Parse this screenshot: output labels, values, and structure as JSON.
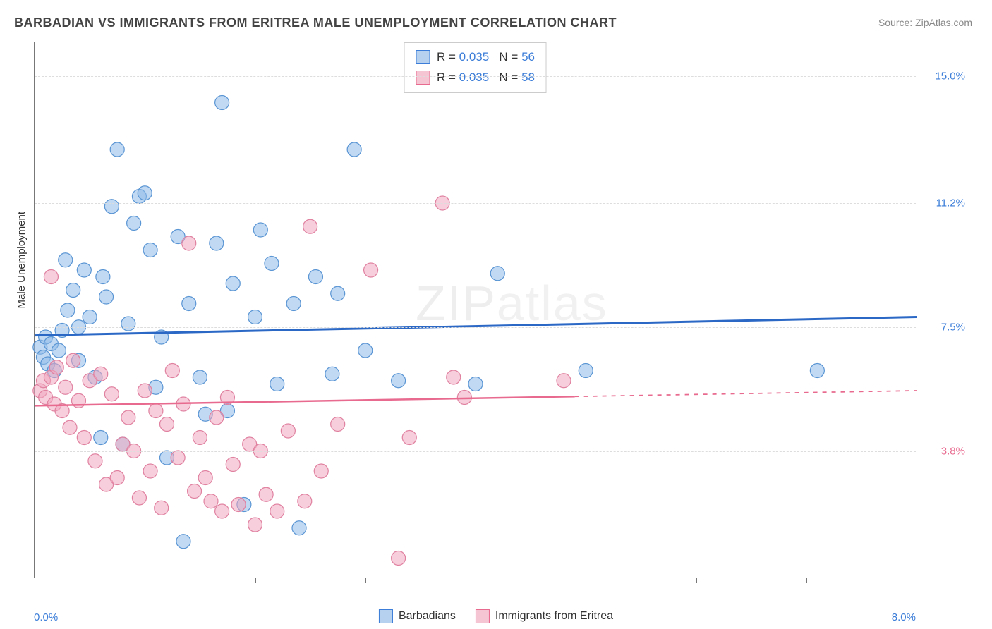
{
  "title": "BARBADIAN VS IMMIGRANTS FROM ERITREA MALE UNEMPLOYMENT CORRELATION CHART",
  "source": "Source: ZipAtlas.com",
  "watermark": {
    "bold": "ZIP",
    "thin": "atlas"
  },
  "chart": {
    "type": "scatter",
    "y_axis_label": "Male Unemployment",
    "background_color": "#ffffff",
    "grid_color": "#dddddd",
    "axis_color": "#777777",
    "x_domain": [
      0,
      8
    ],
    "y_domain": [
      0,
      16
    ],
    "x_ticks": [
      0,
      1,
      2,
      3,
      4,
      5,
      6,
      7,
      8
    ],
    "y_gridlines": [
      {
        "y": 3.8,
        "label": "3.8%",
        "color": "#e86a8f"
      },
      {
        "y": 7.5,
        "label": "7.5%",
        "color": "#3b7dd8"
      },
      {
        "y": 11.2,
        "label": "11.2%",
        "color": "#3b7dd8"
      },
      {
        "y": 15.0,
        "label": "15.0%",
        "color": "#3b7dd8"
      }
    ],
    "x_left_label": {
      "text": "0.0%",
      "color": "#3b7dd8"
    },
    "x_right_label": {
      "text": "8.0%",
      "color": "#3b7dd8"
    },
    "stat_legend": [
      {
        "swatch_fill": "#b6d1ef",
        "swatch_border": "#3b7dd8",
        "r_label": "R =",
        "r": "0.035",
        "n_label": "N =",
        "n": "56"
      },
      {
        "swatch_fill": "#f6c5d3",
        "swatch_border": "#e86a8f",
        "r_label": "R =",
        "r": "0.035",
        "n_label": "N =",
        "n": "58"
      }
    ],
    "bottom_legend": [
      {
        "swatch_fill": "#b6d1ef",
        "swatch_border": "#3b7dd8",
        "label": "Barbadians"
      },
      {
        "swatch_fill": "#f6c5d3",
        "swatch_border": "#e86a8f",
        "label": "Immigrants from Eritrea"
      }
    ],
    "series": [
      {
        "name": "Barbadians",
        "marker_fill": "rgba(142,186,232,0.55)",
        "marker_stroke": "#5a95d4",
        "marker_radius": 10,
        "trend_color": "#2b68c6",
        "trend_width": 3,
        "trend": {
          "x1": 0,
          "y1": 7.25,
          "x2": 8,
          "y2": 7.8,
          "solid_until_x": 8
        },
        "points": [
          [
            0.05,
            6.9
          ],
          [
            0.08,
            6.6
          ],
          [
            0.1,
            7.2
          ],
          [
            0.12,
            6.4
          ],
          [
            0.15,
            7.0
          ],
          [
            0.18,
            6.2
          ],
          [
            0.22,
            6.8
          ],
          [
            0.25,
            7.4
          ],
          [
            0.3,
            8.0
          ],
          [
            0.35,
            8.6
          ],
          [
            0.4,
            7.5
          ],
          [
            0.45,
            9.2
          ],
          [
            0.5,
            7.8
          ],
          [
            0.55,
            6.0
          ],
          [
            0.6,
            4.2
          ],
          [
            0.65,
            8.4
          ],
          [
            0.7,
            11.1
          ],
          [
            0.75,
            12.8
          ],
          [
            0.8,
            4.0
          ],
          [
            0.85,
            7.6
          ],
          [
            0.9,
            10.6
          ],
          [
            0.95,
            11.4
          ],
          [
            1.0,
            11.5
          ],
          [
            1.05,
            9.8
          ],
          [
            1.1,
            5.7
          ],
          [
            1.15,
            7.2
          ],
          [
            1.2,
            3.6
          ],
          [
            1.3,
            10.2
          ],
          [
            1.35,
            1.1
          ],
          [
            1.4,
            8.2
          ],
          [
            1.5,
            6.0
          ],
          [
            1.55,
            4.9
          ],
          [
            1.65,
            10.0
          ],
          [
            1.7,
            14.2
          ],
          [
            1.75,
            5.0
          ],
          [
            1.8,
            8.8
          ],
          [
            1.9,
            2.2
          ],
          [
            2.0,
            7.8
          ],
          [
            2.05,
            10.4
          ],
          [
            2.15,
            9.4
          ],
          [
            2.2,
            5.8
          ],
          [
            2.35,
            8.2
          ],
          [
            2.4,
            1.5
          ],
          [
            2.55,
            9.0
          ],
          [
            2.7,
            6.1
          ],
          [
            2.75,
            8.5
          ],
          [
            2.9,
            12.8
          ],
          [
            3.0,
            6.8
          ],
          [
            3.3,
            5.9
          ],
          [
            4.0,
            5.8
          ],
          [
            4.2,
            9.1
          ],
          [
            5.0,
            6.2
          ],
          [
            7.1,
            6.2
          ],
          [
            0.4,
            6.5
          ],
          [
            0.28,
            9.5
          ],
          [
            0.62,
            9.0
          ]
        ]
      },
      {
        "name": "Immigrants from Eritrea",
        "marker_fill": "rgba(240,165,190,0.55)",
        "marker_stroke": "#e081a0",
        "marker_radius": 10,
        "trend_color": "#e86a8f",
        "trend_width": 2.5,
        "trend": {
          "x1": 0,
          "y1": 5.15,
          "x2": 8,
          "y2": 5.6,
          "solid_until_x": 4.9
        },
        "points": [
          [
            0.05,
            5.6
          ],
          [
            0.08,
            5.9
          ],
          [
            0.1,
            5.4
          ],
          [
            0.15,
            6.0
          ],
          [
            0.18,
            5.2
          ],
          [
            0.2,
            6.3
          ],
          [
            0.25,
            5.0
          ],
          [
            0.28,
            5.7
          ],
          [
            0.32,
            4.5
          ],
          [
            0.35,
            6.5
          ],
          [
            0.4,
            5.3
          ],
          [
            0.45,
            4.2
          ],
          [
            0.5,
            5.9
          ],
          [
            0.55,
            3.5
          ],
          [
            0.6,
            6.1
          ],
          [
            0.65,
            2.8
          ],
          [
            0.7,
            5.5
          ],
          [
            0.75,
            3.0
          ],
          [
            0.8,
            4.0
          ],
          [
            0.85,
            4.8
          ],
          [
            0.9,
            3.8
          ],
          [
            0.95,
            2.4
          ],
          [
            1.0,
            5.6
          ],
          [
            1.05,
            3.2
          ],
          [
            1.1,
            5.0
          ],
          [
            1.15,
            2.1
          ],
          [
            1.2,
            4.6
          ],
          [
            1.25,
            6.2
          ],
          [
            1.3,
            3.6
          ],
          [
            1.35,
            5.2
          ],
          [
            1.4,
            10.0
          ],
          [
            1.45,
            2.6
          ],
          [
            1.5,
            4.2
          ],
          [
            1.55,
            3.0
          ],
          [
            1.6,
            2.3
          ],
          [
            1.65,
            4.8
          ],
          [
            1.7,
            2.0
          ],
          [
            1.75,
            5.4
          ],
          [
            1.8,
            3.4
          ],
          [
            1.85,
            2.2
          ],
          [
            1.95,
            4.0
          ],
          [
            2.0,
            1.6
          ],
          [
            2.05,
            3.8
          ],
          [
            2.1,
            2.5
          ],
          [
            2.2,
            2.0
          ],
          [
            2.3,
            4.4
          ],
          [
            2.45,
            2.3
          ],
          [
            2.5,
            10.5
          ],
          [
            2.6,
            3.2
          ],
          [
            2.75,
            4.6
          ],
          [
            3.05,
            9.2
          ],
          [
            3.3,
            0.6
          ],
          [
            3.4,
            4.2
          ],
          [
            3.7,
            11.2
          ],
          [
            3.8,
            6.0
          ],
          [
            3.9,
            5.4
          ],
          [
            4.8,
            5.9
          ],
          [
            0.15,
            9.0
          ]
        ]
      }
    ]
  }
}
